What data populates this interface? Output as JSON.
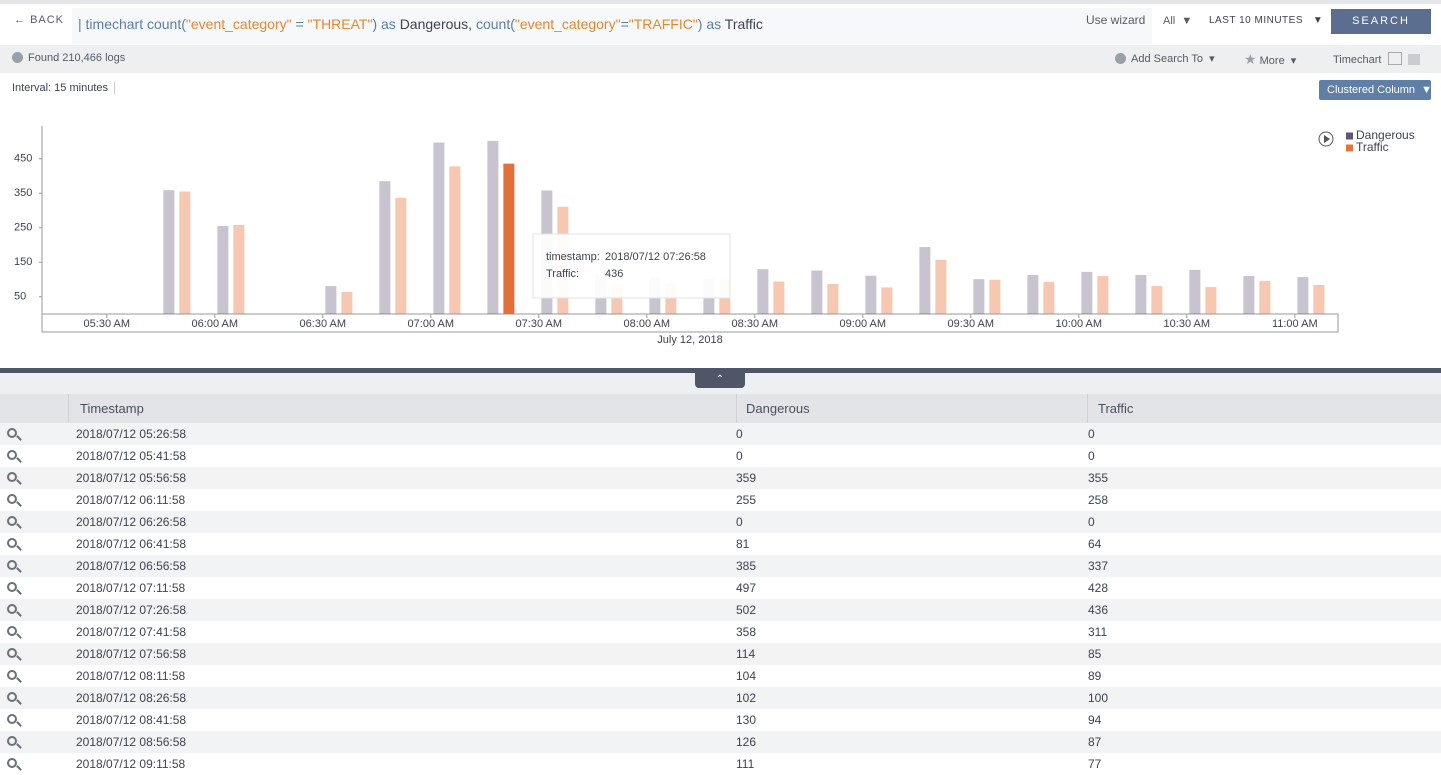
{
  "toolbar": {
    "back": "BACK",
    "query": [
      {
        "text": "| timechart count(",
        "color": "#5b7fa6"
      },
      {
        "text": "\"event_category\"",
        "color": "#e8862f"
      },
      {
        "text": " = ",
        "color": "#5b7fa6"
      },
      {
        "text": "\"THREAT\"",
        "color": "#e8862f"
      },
      {
        "text": ") as ",
        "color": "#5b7fa6"
      },
      {
        "text": "Dangerous, ",
        "color": "#3d4350"
      },
      {
        "text": "count(",
        "color": "#5b7fa6"
      },
      {
        "text": "\"event_category\"",
        "color": "#e8862f"
      },
      {
        "text": "=",
        "color": "#5b7fa6"
      },
      {
        "text": "\"TRAFFIC\"",
        "color": "#e8862f"
      },
      {
        "text": ") as ",
        "color": "#5b7fa6"
      },
      {
        "text": "Traffic",
        "color": "#3d4350"
      }
    ],
    "wizard": "Use wizard",
    "scope": "All",
    "range": "LAST 10 MINUTES",
    "search": "SEARCH"
  },
  "subbar": {
    "found": "Found 210,466 logs",
    "add_search": "Add Search To",
    "more": "More",
    "view": "Timechart"
  },
  "interval": "Interval: 15 minutes",
  "chart_style": "Clustered Column",
  "chart_data": {
    "type": "bar",
    "x": [
      "2018/07/12 05:26:58",
      "2018/07/12 05:41:58",
      "2018/07/12 05:56:58",
      "2018/07/12 06:11:58",
      "2018/07/12 06:26:58",
      "2018/07/12 06:41:58",
      "2018/07/12 06:56:58",
      "2018/07/12 07:11:58",
      "2018/07/12 07:26:58",
      "2018/07/12 07:41:58",
      "2018/07/12 07:56:58",
      "2018/07/12 08:11:58",
      "2018/07/12 08:26:58",
      "2018/07/12 08:41:58",
      "2018/07/12 08:56:58",
      "2018/07/12 09:11:58",
      "2018/07/12 09:26:58",
      "2018/07/12 09:41:58",
      "2018/07/12 09:56:58",
      "2018/07/12 10:11:58",
      "2018/07/12 10:26:58",
      "2018/07/12 10:41:58",
      "2018/07/12 10:56:58",
      "2018/07/12 11:11:58"
    ],
    "series": [
      {
        "name": "Dangerous",
        "color": "#5e5677",
        "values": [
          0,
          0,
          359,
          255,
          0,
          81,
          385,
          497,
          502,
          358,
          114,
          104,
          102,
          130,
          126,
          111,
          194,
          101,
          113,
          122,
          113,
          128,
          110,
          107
        ]
      },
      {
        "name": "Traffic",
        "color": "#e8743b",
        "values": [
          0,
          0,
          355,
          258,
          0,
          64,
          337,
          428,
          436,
          311,
          85,
          89,
          100,
          94,
          87,
          77,
          157,
          99,
          93,
          110,
          81,
          78,
          96,
          84
        ]
      }
    ],
    "xlabel": "July 12, 2018",
    "xlim": [
      "2018/07/12 05:12:00",
      "2018/07/12 11:12:00"
    ],
    "xticks": [
      {
        "value": "2018/07/12 05:30:00",
        "label": "05:30 AM"
      },
      {
        "value": "2018/07/12 06:00:00",
        "label": "06:00 AM"
      },
      {
        "value": "2018/07/12 06:30:00",
        "label": "06:30 AM"
      },
      {
        "value": "2018/07/12 07:00:00",
        "label": "07:00 AM"
      },
      {
        "value": "2018/07/12 07:30:00",
        "label": "07:30 AM"
      },
      {
        "value": "2018/07/12 08:00:00",
        "label": "08:00 AM"
      },
      {
        "value": "2018/07/12 08:30:00",
        "label": "08:30 AM"
      },
      {
        "value": "2018/07/12 09:00:00",
        "label": "09:00 AM"
      },
      {
        "value": "2018/07/12 09:30:00",
        "label": "09:30 AM"
      },
      {
        "value": "2018/07/12 10:00:00",
        "label": "10:00 AM"
      },
      {
        "value": "2018/07/12 10:30:00",
        "label": "10:30 AM"
      },
      {
        "value": "2018/07/12 11:00:00",
        "label": "11:00 AM"
      }
    ],
    "ylim": [
      0,
      545
    ],
    "yticks": [
      50,
      150,
      250,
      350,
      450
    ],
    "grid": false,
    "legend": "top-right",
    "highlight": {
      "series": 1,
      "index": 8,
      "color": "#e2703a"
    },
    "tooltip": {
      "key_label": "timestamp:",
      "series_label": "Traffic:"
    }
  },
  "table": {
    "header": [
      "Timestamp",
      "Dangerous",
      "Traffic"
    ],
    "rows": [
      [
        "2018/07/12 05:26:58",
        0,
        0
      ],
      [
        "2018/07/12 05:41:58",
        0,
        0
      ],
      [
        "2018/07/12 05:56:58",
        359,
        355
      ],
      [
        "2018/07/12 06:11:58",
        255,
        258
      ],
      [
        "2018/07/12 06:26:58",
        0,
        0
      ],
      [
        "2018/07/12 06:41:58",
        81,
        64
      ],
      [
        "2018/07/12 06:56:58",
        385,
        337
      ],
      [
        "2018/07/12 07:11:58",
        497,
        428
      ],
      [
        "2018/07/12 07:26:58",
        502,
        436
      ],
      [
        "2018/07/12 07:41:58",
        358,
        311
      ],
      [
        "2018/07/12 07:56:58",
        114,
        85
      ],
      [
        "2018/07/12 08:11:58",
        104,
        89
      ],
      [
        "2018/07/12 08:26:58",
        102,
        100
      ],
      [
        "2018/07/12 08:41:58",
        130,
        94
      ],
      [
        "2018/07/12 08:56:58",
        126,
        87
      ],
      [
        "2018/07/12 09:11:58",
        111,
        77
      ]
    ]
  }
}
